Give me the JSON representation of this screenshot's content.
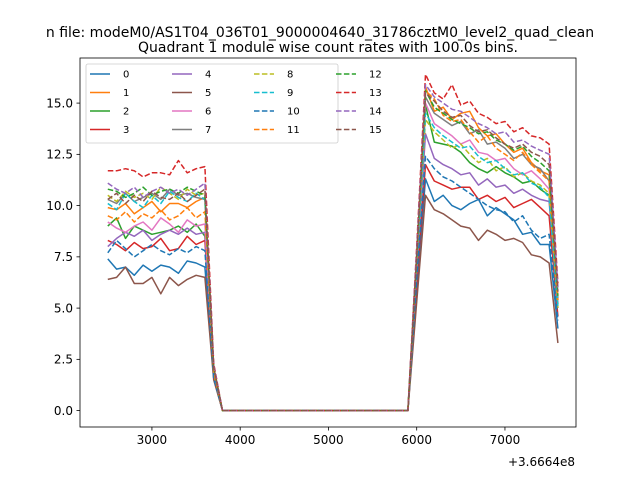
{
  "chart_data": {
    "type": "line",
    "suptitle": "n file: modeM0/AS1T04_036T01_9000004640_31786cztM0_level2_quad_clean",
    "title": "Quadrant 1 module wise count rates with 100.0s bins.",
    "xlabel": "",
    "ylabel": "",
    "offset_text": "+3.6664e8",
    "xlim": [
      2185,
      7805
    ],
    "ylim": [
      -0.8,
      17.2
    ],
    "xticks": [
      3000,
      4000,
      5000,
      6000,
      7000
    ],
    "yticks": [
      0.0,
      2.5,
      5.0,
      7.5,
      10.0,
      12.5,
      15.0
    ],
    "ytick_labels": [
      "0.0",
      "2.5",
      "5.0",
      "7.5",
      "10.0",
      "12.5",
      "15.0"
    ],
    "x": [
      2500,
      2600,
      2700,
      2800,
      2900,
      3000,
      3100,
      3200,
      3300,
      3400,
      3500,
      3600,
      3700,
      3800,
      3900,
      4000,
      4100,
      4200,
      4300,
      4400,
      4500,
      4600,
      4700,
      4800,
      4900,
      5000,
      5100,
      5200,
      5300,
      5400,
      5500,
      5600,
      5700,
      5800,
      5900,
      6000,
      6100,
      6200,
      6300,
      6400,
      6500,
      6600,
      6700,
      6800,
      6900,
      7000,
      7100,
      7200,
      7300,
      7400,
      7500,
      7600
    ],
    "legend_loc": "upper-left",
    "series": [
      {
        "name": "0",
        "color": "#1f77b4",
        "dash": false,
        "values": [
          7.4,
          6.9,
          7.0,
          6.6,
          7.1,
          6.8,
          7.1,
          7.0,
          6.7,
          7.3,
          7.2,
          7.0,
          1.6,
          0,
          0,
          0,
          0,
          0,
          0,
          0,
          0,
          0,
          0,
          0,
          0,
          0,
          0,
          0,
          0,
          0,
          0,
          0,
          0,
          0,
          0,
          6.0,
          11.3,
          10.2,
          10.5,
          10.0,
          9.8,
          10.1,
          10.3,
          9.5,
          9.9,
          9.6,
          9.3,
          8.6,
          8.7,
          8.1,
          8.1,
          4.0
        ]
      },
      {
        "name": "1",
        "color": "#ff7f0e",
        "dash": false,
        "values": [
          9.9,
          9.8,
          10.1,
          9.6,
          9.9,
          10.2,
          9.7,
          10.1,
          10.1,
          9.9,
          10.2,
          10.4,
          2.0,
          0,
          0,
          0,
          0,
          0,
          0,
          0,
          0,
          0,
          0,
          0,
          0,
          0,
          0,
          0,
          0,
          0,
          0,
          0,
          0,
          0,
          0,
          7.0,
          15.8,
          14.6,
          14.8,
          14.2,
          14.5,
          14.6,
          13.8,
          13.4,
          13.5,
          13.0,
          12.6,
          12.8,
          12.1,
          11.7,
          11.5,
          5.5
        ]
      },
      {
        "name": "2",
        "color": "#2ca02c",
        "dash": false,
        "values": [
          9.0,
          9.4,
          8.4,
          9.0,
          8.8,
          8.6,
          8.7,
          8.8,
          9.0,
          8.7,
          9.1,
          8.5,
          1.8,
          0,
          0,
          0,
          0,
          0,
          0,
          0,
          0,
          0,
          0,
          0,
          0,
          0,
          0,
          0,
          0,
          0,
          0,
          0,
          0,
          0,
          0,
          6.6,
          14.9,
          13.1,
          13.0,
          12.9,
          12.6,
          12.1,
          11.8,
          11.6,
          11.9,
          11.6,
          11.4,
          11.1,
          11.2,
          10.8,
          10.5,
          5.2
        ]
      },
      {
        "name": "3",
        "color": "#d62728",
        "dash": false,
        "values": [
          8.3,
          8.1,
          7.8,
          8.2,
          7.9,
          8.0,
          8.4,
          7.8,
          7.9,
          8.5,
          8.1,
          8.3,
          1.7,
          0,
          0,
          0,
          0,
          0,
          0,
          0,
          0,
          0,
          0,
          0,
          0,
          0,
          0,
          0,
          0,
          0,
          0,
          0,
          0,
          0,
          0,
          6.2,
          12.0,
          11.2,
          11.0,
          10.8,
          10.9,
          10.9,
          10.3,
          10.5,
          10.2,
          10.4,
          9.9,
          10.1,
          10.3,
          9.9,
          9.5,
          4.6
        ]
      },
      {
        "name": "4",
        "color": "#9467bd",
        "dash": false,
        "values": [
          8.0,
          8.4,
          8.7,
          8.5,
          8.8,
          8.3,
          8.6,
          8.8,
          8.6,
          8.9,
          8.6,
          8.7,
          1.8,
          0,
          0,
          0,
          0,
          0,
          0,
          0,
          0,
          0,
          0,
          0,
          0,
          0,
          0,
          0,
          0,
          0,
          0,
          0,
          0,
          0,
          0,
          6.8,
          13.5,
          12.3,
          12.0,
          11.8,
          11.5,
          11.6,
          11.0,
          11.3,
          10.9,
          11.0,
          10.6,
          10.8,
          10.5,
          10.3,
          10.2,
          5.0
        ]
      },
      {
        "name": "5",
        "color": "#8c564b",
        "dash": false,
        "values": [
          6.4,
          6.5,
          7.0,
          6.2,
          6.2,
          6.5,
          5.7,
          6.5,
          6.1,
          6.4,
          6.6,
          6.5,
          1.5,
          0,
          0,
          0,
          0,
          0,
          0,
          0,
          0,
          0,
          0,
          0,
          0,
          0,
          0,
          0,
          0,
          0,
          0,
          0,
          0,
          0,
          0,
          5.3,
          10.5,
          9.8,
          9.6,
          9.3,
          9.0,
          8.9,
          8.3,
          8.8,
          8.6,
          8.3,
          8.4,
          8.2,
          7.6,
          7.5,
          7.2,
          3.3
        ]
      },
      {
        "name": "6",
        "color": "#e377c2",
        "dash": false,
        "values": [
          9.2,
          8.9,
          8.7,
          9.0,
          9.2,
          8.8,
          9.4,
          9.1,
          8.7,
          9.3,
          9.0,
          9.1,
          1.9,
          0,
          0,
          0,
          0,
          0,
          0,
          0,
          0,
          0,
          0,
          0,
          0,
          0,
          0,
          0,
          0,
          0,
          0,
          0,
          0,
          0,
          0,
          7.1,
          15.0,
          14.0,
          13.7,
          13.4,
          13.0,
          13.2,
          12.6,
          12.5,
          12.2,
          12.3,
          11.8,
          11.5,
          11.7,
          11.3,
          10.8,
          5.3
        ]
      },
      {
        "name": "7",
        "color": "#7f7f7f",
        "dash": false,
        "values": [
          10.3,
          10.1,
          10.6,
          10.2,
          10.4,
          10.6,
          10.3,
          10.8,
          10.5,
          10.6,
          10.4,
          10.3,
          2.1,
          0,
          0,
          0,
          0,
          0,
          0,
          0,
          0,
          0,
          0,
          0,
          0,
          0,
          0,
          0,
          0,
          0,
          0,
          0,
          0,
          0,
          0,
          7.4,
          15.3,
          14.5,
          14.2,
          13.9,
          14.1,
          13.5,
          13.7,
          13.0,
          13.1,
          12.8,
          12.3,
          12.5,
          12.0,
          11.8,
          11.2,
          5.4
        ]
      },
      {
        "name": "8",
        "color": "#bcbd22",
        "dash": true,
        "values": [
          10.5,
          10.2,
          10.7,
          10.4,
          10.6,
          10.3,
          10.9,
          10.6,
          10.3,
          10.8,
          10.5,
          10.6,
          2.1,
          0,
          0,
          0,
          0,
          0,
          0,
          0,
          0,
          0,
          0,
          0,
          0,
          0,
          0,
          0,
          0,
          0,
          0,
          0,
          0,
          0,
          0,
          7.2,
          14.2,
          13.6,
          13.2,
          12.8,
          13.0,
          12.5,
          12.1,
          12.3,
          11.7,
          11.9,
          11.4,
          11.6,
          11.2,
          11.0,
          10.6,
          5.0
        ]
      },
      {
        "name": "9",
        "color": "#17becf",
        "dash": true,
        "values": [
          10.1,
          9.8,
          10.6,
          10.2,
          9.9,
          10.5,
          10.1,
          10.7,
          10.4,
          10.2,
          10.6,
          10.3,
          2.0,
          0,
          0,
          0,
          0,
          0,
          0,
          0,
          0,
          0,
          0,
          0,
          0,
          0,
          0,
          0,
          0,
          0,
          0,
          0,
          0,
          0,
          0,
          7.3,
          14.5,
          13.8,
          13.4,
          13.1,
          12.8,
          12.9,
          12.4,
          12.1,
          12.2,
          11.8,
          11.5,
          11.6,
          11.1,
          10.9,
          10.4,
          5.1
        ]
      },
      {
        "name": "10",
        "color": "#1f77b4",
        "dash": true,
        "values": [
          7.7,
          8.3,
          7.9,
          7.5,
          7.8,
          8.1,
          7.8,
          7.6,
          7.9,
          7.7,
          8.0,
          7.8,
          1.6,
          0,
          0,
          0,
          0,
          0,
          0,
          0,
          0,
          0,
          0,
          0,
          0,
          0,
          0,
          0,
          0,
          0,
          0,
          0,
          0,
          0,
          0,
          6.4,
          12.4,
          11.8,
          11.4,
          11.2,
          10.9,
          10.6,
          10.3,
          10.0,
          9.8,
          9.7,
          9.2,
          9.5,
          8.8,
          8.4,
          8.6,
          4.4
        ]
      },
      {
        "name": "11",
        "color": "#ff7f0e",
        "dash": true,
        "values": [
          9.5,
          9.3,
          9.7,
          9.2,
          9.6,
          9.4,
          9.8,
          9.3,
          9.5,
          9.9,
          9.4,
          9.7,
          1.9,
          0,
          0,
          0,
          0,
          0,
          0,
          0,
          0,
          0,
          0,
          0,
          0,
          0,
          0,
          0,
          0,
          0,
          0,
          0,
          0,
          0,
          0,
          7.5,
          15.6,
          15.2,
          14.4,
          14.1,
          14.2,
          13.6,
          13.1,
          13.4,
          12.8,
          12.5,
          12.2,
          12.6,
          12.0,
          11.6,
          11.2,
          5.4
        ]
      },
      {
        "name": "12",
        "color": "#2ca02c",
        "dash": true,
        "values": [
          10.8,
          10.7,
          10.4,
          10.6,
          10.9,
          10.5,
          10.7,
          10.8,
          10.6,
          10.9,
          10.7,
          10.5,
          2.1,
          0,
          0,
          0,
          0,
          0,
          0,
          0,
          0,
          0,
          0,
          0,
          0,
          0,
          0,
          0,
          0,
          0,
          0,
          0,
          0,
          0,
          0,
          7.6,
          15.6,
          14.8,
          14.5,
          14.2,
          14.0,
          13.8,
          13.5,
          13.6,
          13.2,
          13.0,
          12.7,
          12.9,
          12.4,
          12.1,
          11.7,
          5.6
        ]
      },
      {
        "name": "13",
        "color": "#d62728",
        "dash": true,
        "values": [
          11.7,
          11.7,
          11.8,
          11.7,
          11.4,
          11.6,
          11.6,
          11.5,
          12.2,
          11.6,
          11.8,
          11.9,
          2.3,
          0,
          0,
          0,
          0,
          0,
          0,
          0,
          0,
          0,
          0,
          0,
          0,
          0,
          0,
          0,
          0,
          0,
          0,
          0,
          0,
          0,
          0,
          8.0,
          16.4,
          15.5,
          15.2,
          15.9,
          14.9,
          15.1,
          14.5,
          14.3,
          14.0,
          14.1,
          13.6,
          13.8,
          13.4,
          13.3,
          13.0,
          6.2
        ]
      },
      {
        "name": "14",
        "color": "#9467bd",
        "dash": true,
        "values": [
          11.1,
          10.8,
          10.6,
          10.9,
          10.4,
          10.7,
          10.9,
          10.6,
          10.8,
          10.5,
          10.8,
          11.1,
          2.2,
          0,
          0,
          0,
          0,
          0,
          0,
          0,
          0,
          0,
          0,
          0,
          0,
          0,
          0,
          0,
          0,
          0,
          0,
          0,
          0,
          0,
          0,
          7.8,
          15.9,
          15.3,
          15.0,
          14.7,
          14.6,
          14.3,
          14.0,
          13.8,
          13.5,
          13.6,
          13.1,
          13.2,
          12.9,
          12.7,
          12.5,
          6.0
        ]
      },
      {
        "name": "15",
        "color": "#8c564b",
        "dash": true,
        "values": [
          10.3,
          10.6,
          10.1,
          10.5,
          10.2,
          10.7,
          10.4,
          10.3,
          10.6,
          10.2,
          10.5,
          10.8,
          2.1,
          0,
          0,
          0,
          0,
          0,
          0,
          0,
          0,
          0,
          0,
          0,
          0,
          0,
          0,
          0,
          0,
          0,
          0,
          0,
          0,
          0,
          0,
          7.5,
          15.5,
          15.1,
          14.6,
          14.3,
          14.4,
          13.9,
          13.6,
          13.7,
          13.3,
          13.0,
          12.8,
          13.0,
          12.6,
          12.4,
          12.0,
          5.8
        ]
      }
    ]
  }
}
